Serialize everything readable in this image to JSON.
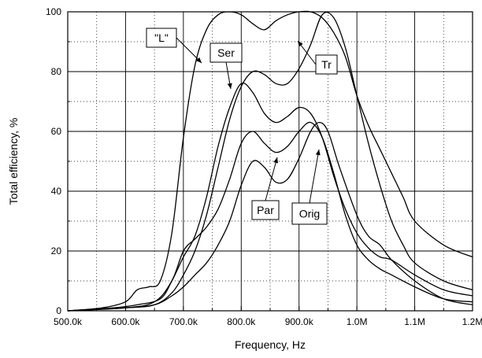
{
  "chart_data": {
    "type": "line",
    "xlabel": "Frequency, Hz",
    "ylabel": "Total efficiency, %",
    "xlim": [
      500000,
      1200000
    ],
    "ylim": [
      0,
      100
    ],
    "x_ticks": [
      500000,
      600000,
      700000,
      800000,
      900000,
      1000000,
      1100000,
      1200000
    ],
    "x_tick_labels": [
      "500.0k",
      "600.0k",
      "700.0k",
      "800.0k",
      "900.0k",
      "1.0M",
      "1.1M",
      "1.2M"
    ],
    "y_ticks": [
      0,
      20,
      40,
      60,
      80,
      100
    ],
    "y_tick_labels": [
      "0",
      "20",
      "40",
      "60",
      "80",
      "100"
    ],
    "grid": "dotted",
    "series": [
      {
        "name": "\"L\"",
        "x": [
          500000,
          560000,
          600000,
          620000,
          640000,
          660000,
          680000,
          700000,
          720000,
          740000,
          760000,
          780000,
          800000,
          820000,
          840000,
          860000,
          880000,
          900000,
          920000,
          940000,
          960000,
          980000,
          1000000,
          1020000,
          1040000,
          1060000,
          1080000,
          1100000,
          1150000,
          1200000
        ],
        "y": [
          0,
          1,
          3,
          7,
          8,
          10,
          26,
          58,
          82,
          94,
          99,
          100,
          99,
          96,
          94,
          97,
          99,
          100,
          100,
          98,
          93,
          85,
          72,
          62,
          54,
          46,
          38,
          30,
          22,
          18
        ]
      },
      {
        "name": "Ser",
        "x": [
          500000,
          580000,
          620000,
          660000,
          680000,
          700000,
          720000,
          740000,
          760000,
          780000,
          800000,
          820000,
          840000,
          860000,
          880000,
          900000,
          920000,
          940000,
          960000,
          980000,
          1000000,
          1020000,
          1040000,
          1060000,
          1100000,
          1150000,
          1200000
        ],
        "y": [
          0,
          1,
          2,
          4,
          10,
          18,
          25,
          38,
          55,
          68,
          76,
          73,
          66,
          63,
          65,
          68,
          66,
          58,
          45,
          34,
          26,
          21,
          18,
          17,
          12,
          7,
          5
        ]
      },
      {
        "name": "Tr",
        "x": [
          500000,
          600000,
          650000,
          680000,
          700000,
          720000,
          740000,
          760000,
          780000,
          800000,
          820000,
          840000,
          860000,
          880000,
          900000,
          920000,
          940000,
          960000,
          980000,
          1000000,
          1020000,
          1040000,
          1060000,
          1080000,
          1100000,
          1150000,
          1200000
        ],
        "y": [
          0,
          1,
          2,
          6,
          12,
          20,
          32,
          48,
          64,
          75,
          80,
          79,
          76,
          76,
          81,
          89,
          99,
          98,
          88,
          72,
          56,
          42,
          30,
          22,
          16,
          10,
          7
        ]
      },
      {
        "name": "Par",
        "x": [
          500000,
          600000,
          650000,
          680000,
          700000,
          720000,
          740000,
          760000,
          780000,
          800000,
          820000,
          840000,
          860000,
          880000,
          900000,
          920000,
          940000,
          960000,
          980000,
          1000000,
          1020000,
          1040000,
          1060000,
          1100000,
          1150000,
          1200000
        ],
        "y": [
          0,
          1,
          3,
          10,
          20,
          24,
          28,
          34,
          44,
          56,
          60,
          56,
          53,
          55,
          60,
          63,
          58,
          46,
          32,
          22,
          17,
          14,
          12,
          8,
          4,
          3
        ]
      },
      {
        "name": "Orig",
        "x": [
          500000,
          600000,
          650000,
          680000,
          700000,
          720000,
          740000,
          760000,
          780000,
          800000,
          820000,
          840000,
          860000,
          880000,
          900000,
          920000,
          935000,
          950000,
          970000,
          1000000,
          1020000,
          1040000,
          1060000,
          1100000,
          1150000,
          1200000
        ],
        "y": [
          0,
          1,
          2,
          5,
          8,
          12,
          16,
          22,
          30,
          42,
          50,
          48,
          43,
          44,
          51,
          60,
          63,
          60,
          48,
          32,
          25,
          22,
          17,
          10,
          4,
          2
        ]
      }
    ],
    "annotations": [
      {
        "text": "\"L\"",
        "series": "\"L\""
      },
      {
        "text": "Ser",
        "series": "Ser"
      },
      {
        "text": "Tr",
        "series": "Tr"
      },
      {
        "text": "Par",
        "series": "Par"
      },
      {
        "text": "Orig",
        "series": "Orig"
      }
    ]
  }
}
